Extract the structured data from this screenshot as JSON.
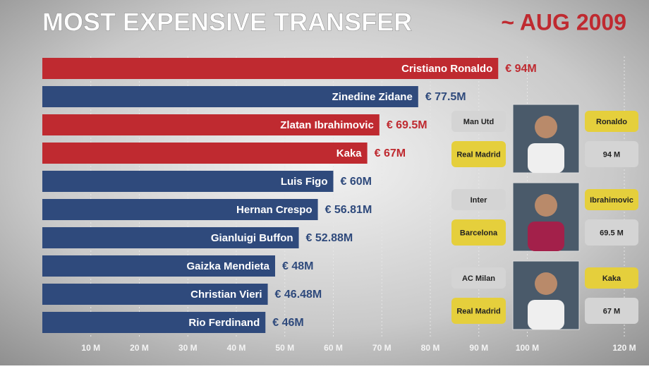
{
  "chart_data": {
    "type": "bar",
    "orientation": "horizontal",
    "title": "MOST EXPENSIVE TRANSFER",
    "subtitle": "~ AUG 2009",
    "categories": [
      "Cristiano Ronaldo",
      "Zinedine Zidane",
      "Zlatan Ibrahimovic",
      "Kaka",
      "Luis Figo",
      "Hernan Crespo",
      "Gianluigi Buffon",
      "Gaizka Mendieta",
      "Christian Vieri",
      "Rio Ferdinand"
    ],
    "values": [
      94,
      77.5,
      69.5,
      67,
      60,
      56.81,
      52.88,
      48,
      46.48,
      46
    ],
    "value_labels": [
      "€ 94M",
      "€ 77.5M",
      "€ 69.5M",
      "€ 67M",
      "€ 60M",
      "€ 56.81M",
      "€ 52.88M",
      "€ 48M",
      "€ 46.48M",
      "€ 46M"
    ],
    "colors": [
      "#bf2a30",
      "#2f4a7c",
      "#bf2a30",
      "#bf2a30",
      "#2f4a7c",
      "#2f4a7c",
      "#2f4a7c",
      "#2f4a7c",
      "#2f4a7c",
      "#2f4a7c"
    ],
    "xlim": [
      0,
      120
    ],
    "xticks": [
      {
        "value": 10,
        "label": "10 M"
      },
      {
        "value": 20,
        "label": "20 M"
      },
      {
        "value": 30,
        "label": "30 M"
      },
      {
        "value": 40,
        "label": "40 M"
      },
      {
        "value": 50,
        "label": "50 M"
      },
      {
        "value": 60,
        "label": "60 M"
      },
      {
        "value": 70,
        "label": "70 M"
      },
      {
        "value": 80,
        "label": "80 M"
      },
      {
        "value": 90,
        "label": "90 M"
      },
      {
        "value": 100,
        "label": "100 M"
      },
      {
        "value": 120,
        "label": "120 M"
      }
    ],
    "grid": true,
    "panels": [
      {
        "from": "Man Utd",
        "to": "Real Madrid",
        "player": "Ronaldo",
        "fee": "94 M"
      },
      {
        "from": "Inter",
        "to": "Barcelona",
        "player": "Ibrahimovic",
        "fee": "69.5 M"
      },
      {
        "from": "AC Milan",
        "to": "Real Madrid",
        "player": "Kaka",
        "fee": "67 M"
      }
    ]
  }
}
